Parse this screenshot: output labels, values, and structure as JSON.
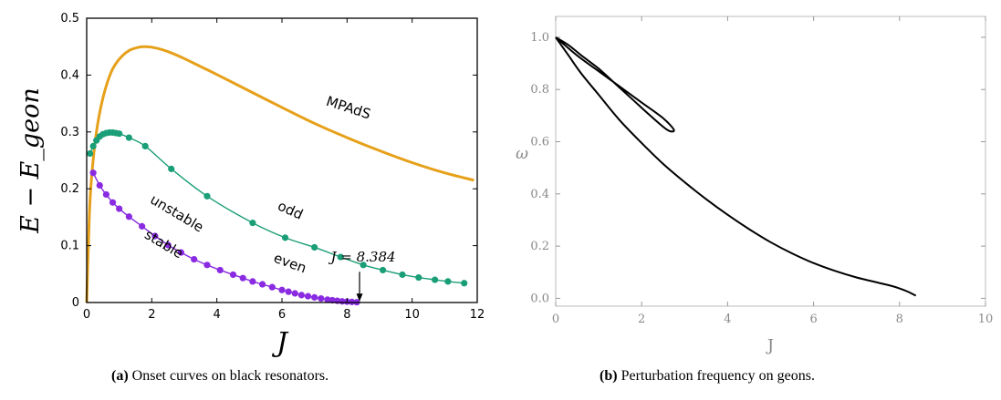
{
  "chart_data": [
    {
      "type": "line",
      "panel_label": "(a)",
      "caption": "Onset curves on black resonators.",
      "xlabel": "J",
      "ylabel": "E − E_geon",
      "xlim": [
        0,
        12
      ],
      "ylim": [
        0,
        0.5
      ],
      "xticks": [
        0,
        2,
        4,
        6,
        8,
        10,
        12
      ],
      "yticks": [
        0,
        0.1,
        0.2,
        0.3,
        0.4,
        0.5
      ],
      "xtick_labels": [
        "0",
        "2",
        "4",
        "6",
        "8",
        "10",
        "12"
      ],
      "ytick_labels": [
        "0",
        "0.1",
        "0.2",
        "0.3",
        "0.4",
        "0.5"
      ],
      "grid": false,
      "series": [
        {
          "name": "MPAdS",
          "color": "#e6a01a",
          "markers": false,
          "x": [
            0,
            0.08,
            0.15,
            0.3,
            0.5,
            0.75,
            1,
            1.3,
            1.6,
            1.8,
            2.0,
            2.3,
            2.6,
            3,
            3.5,
            4,
            5,
            6,
            7,
            8,
            9,
            10,
            11,
            11.9
          ],
          "y": [
            0,
            0.15,
            0.22,
            0.3,
            0.36,
            0.405,
            0.428,
            0.443,
            0.449,
            0.45,
            0.449,
            0.445,
            0.439,
            0.429,
            0.415,
            0.401,
            0.372,
            0.343,
            0.315,
            0.29,
            0.267,
            0.246,
            0.228,
            0.215
          ]
        },
        {
          "name": "odd",
          "color": "#1a9e77",
          "markers": true,
          "x": [
            0.1,
            0.2,
            0.3,
            0.4,
            0.5,
            0.6,
            0.7,
            0.8,
            0.9,
            1.0,
            1.3,
            1.8,
            2.6,
            3.7,
            5.1,
            6.1,
            7.0,
            7.8,
            8.5,
            9.1,
            9.7,
            10.2,
            10.7,
            11.1,
            11.6
          ],
          "y": [
            0.262,
            0.275,
            0.285,
            0.292,
            0.296,
            0.298,
            0.299,
            0.299,
            0.298,
            0.297,
            0.29,
            0.275,
            0.235,
            0.187,
            0.14,
            0.114,
            0.097,
            0.08,
            0.066,
            0.057,
            0.049,
            0.044,
            0.04,
            0.037,
            0.034
          ]
        },
        {
          "name": "even",
          "color": "#8a2be2",
          "markers": true,
          "x": [
            0.2,
            0.4,
            0.6,
            0.8,
            1.0,
            1.3,
            1.7,
            2.1,
            2.5,
            2.9,
            3.3,
            3.7,
            4.1,
            4.5,
            4.8,
            5.1,
            5.4,
            5.7,
            6.0,
            6.2,
            6.4,
            6.6,
            6.8,
            7.0,
            7.2,
            7.4,
            7.55,
            7.7,
            7.85,
            8.0,
            8.15,
            8.3
          ],
          "y": [
            0.228,
            0.206,
            0.19,
            0.176,
            0.165,
            0.151,
            0.134,
            0.117,
            0.101,
            0.088,
            0.076,
            0.066,
            0.057,
            0.049,
            0.043,
            0.037,
            0.032,
            0.027,
            0.022,
            0.019,
            0.016,
            0.013,
            0.011,
            0.009,
            0.007,
            0.005,
            0.004,
            0.003,
            0.002,
            0.0015,
            0.001,
            0.0005
          ]
        }
      ],
      "annotations": {
        "unstable": "unstable",
        "stable": "stable",
        "odd": "odd",
        "even": "even",
        "mpads": "MPAdS",
        "jmark": "J = 8.384",
        "jmark_value": 8.384
      }
    },
    {
      "type": "line",
      "panel_label": "(b)",
      "caption": "Perturbation frequency on geons.",
      "xlabel": "J",
      "ylabel": "ω",
      "xlim": [
        0,
        10
      ],
      "ylim": [
        -0.03,
        1.08
      ],
      "xticks": [
        0,
        2,
        4,
        6,
        8,
        10
      ],
      "yticks": [
        0,
        0.2,
        0.4,
        0.6,
        0.8,
        1.0
      ],
      "xtick_labels": [
        "0",
        "2",
        "4",
        "6",
        "8",
        "10"
      ],
      "ytick_labels": [
        "0.0",
        "0.2",
        "0.4",
        "0.6",
        "0.8",
        "1.0"
      ],
      "grid": false,
      "series": [
        {
          "color": "#000000",
          "x": [
            0,
            0.5,
            1.0,
            1.5,
            2.0,
            2.5,
            2.75,
            2.6,
            2.2,
            1.8,
            1.4,
            1.0,
            0.6,
            0.3,
            0
          ],
          "y": [
            1.0,
            0.93,
            0.87,
            0.81,
            0.75,
            0.69,
            0.645,
            0.645,
            0.7,
            0.76,
            0.82,
            0.88,
            0.93,
            0.97,
            1.0
          ]
        },
        {
          "color": "#000000",
          "x": [
            0,
            0.3,
            0.6,
            1.0,
            1.5,
            2.0,
            2.5,
            3,
            3.5,
            4,
            4.5,
            5,
            5.5,
            6,
            6.5,
            7,
            7.5,
            7.8,
            8.0,
            8.2,
            8.38
          ],
          "y": [
            1.0,
            0.93,
            0.86,
            0.78,
            0.68,
            0.595,
            0.515,
            0.445,
            0.38,
            0.32,
            0.265,
            0.215,
            0.172,
            0.135,
            0.105,
            0.08,
            0.06,
            0.048,
            0.038,
            0.025,
            0.01
          ]
        }
      ]
    }
  ]
}
